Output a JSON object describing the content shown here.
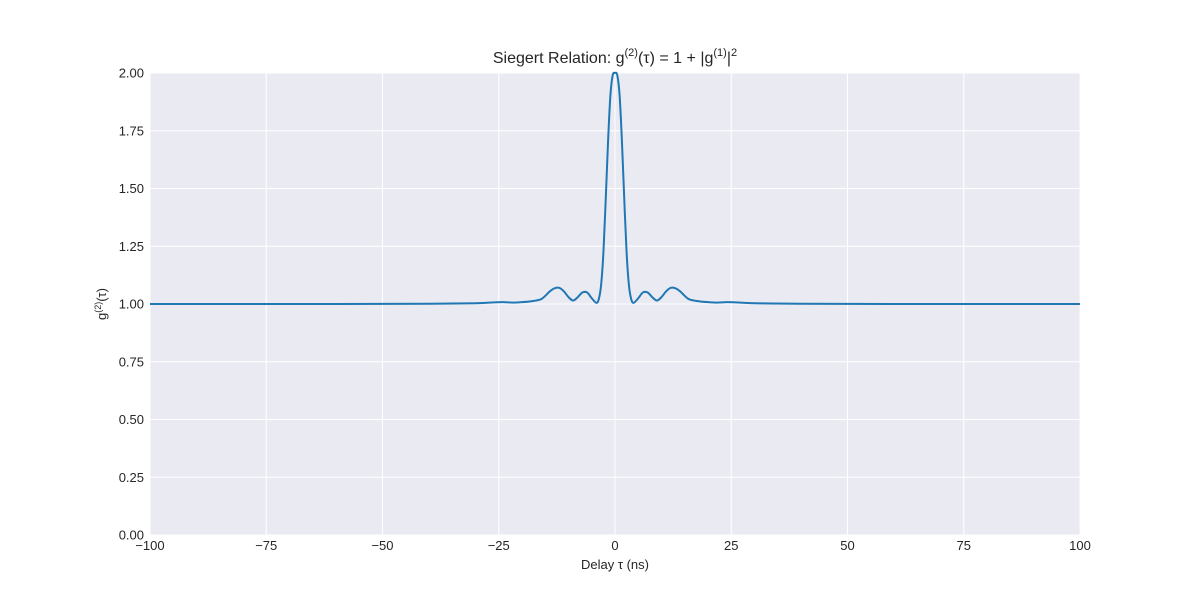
{
  "chart_data": {
    "type": "line",
    "title": {
      "prefix": "Siegert Relation: g",
      "sup1": "(2)",
      "mid": "(τ) = 1 + |g",
      "sup2": "(1)",
      "suffix": "|",
      "sup3": "2"
    },
    "xlabel": "Delay τ (ns)",
    "ylabel": {
      "base": "g",
      "sup": "(2)",
      "rest": "(τ)"
    },
    "xlim": [
      -100,
      100
    ],
    "ylim": [
      0,
      2
    ],
    "xticks": [
      -100,
      -75,
      -50,
      -25,
      0,
      25,
      50,
      75,
      100
    ],
    "xtick_labels": [
      "−100",
      "−75",
      "−50",
      "−25",
      "0",
      "25",
      "50",
      "75",
      "100"
    ],
    "yticks": [
      0,
      0.25,
      0.5,
      0.75,
      1,
      1.25,
      1.5,
      1.75,
      2
    ],
    "ytick_labels": [
      "0.00",
      "0.25",
      "0.50",
      "0.75",
      "1.00",
      "1.25",
      "1.50",
      "1.75",
      "2.00"
    ],
    "grid": true,
    "colors": {
      "background": "#eaeaf2",
      "grid": "#ffffff",
      "line": "#1f77b4"
    },
    "series": [
      {
        "x": [
          -100,
          -60,
          -40,
          -30,
          -26,
          -24,
          -22,
          -20,
          -18,
          -16,
          -15,
          -14,
          -13,
          -12,
          -11,
          -10,
          -9,
          -8,
          -7,
          -6,
          -5,
          -4,
          -3.5,
          -3,
          -2.5,
          -2,
          -1.5,
          -1,
          -0.5,
          0,
          0.5,
          1,
          1.5,
          2,
          2.5,
          3,
          3.5,
          4,
          5,
          6,
          7,
          8,
          9,
          10,
          11,
          12,
          13,
          14,
          15,
          16,
          18,
          20,
          22,
          24,
          26,
          30,
          40,
          60,
          100
        ],
        "y": [
          1.0,
          1.0,
          1.001,
          1.003,
          1.007,
          1.008,
          1.006,
          1.008,
          1.012,
          1.02,
          1.035,
          1.055,
          1.068,
          1.07,
          1.055,
          1.03,
          1.015,
          1.03,
          1.05,
          1.05,
          1.025,
          1.005,
          1.02,
          1.08,
          1.22,
          1.45,
          1.7,
          1.9,
          1.99,
          2.0,
          1.99,
          1.9,
          1.7,
          1.45,
          1.22,
          1.08,
          1.02,
          1.005,
          1.025,
          1.05,
          1.05,
          1.03,
          1.015,
          1.03,
          1.055,
          1.07,
          1.068,
          1.055,
          1.035,
          1.02,
          1.012,
          1.008,
          1.006,
          1.008,
          1.007,
          1.003,
          1.001,
          1.0,
          1.0
        ]
      }
    ]
  }
}
